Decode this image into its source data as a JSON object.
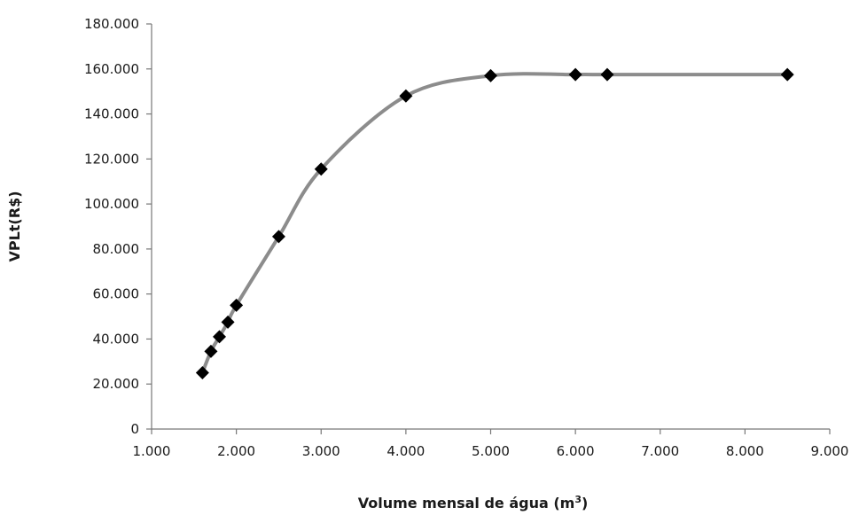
{
  "chart_data": {
    "type": "scatter",
    "xlabel": "Volume mensal de água (m³)",
    "xlabel_main": "Volume mensal de água (m",
    "xlabel_sup": "3",
    "xlabel_tail": ")",
    "ylabel": "VPLt(R$)",
    "xlim": [
      1000,
      9000
    ],
    "ylim": [
      0,
      180000
    ],
    "x_ticks": [
      1000,
      2000,
      3000,
      4000,
      5000,
      6000,
      7000,
      8000,
      9000
    ],
    "x_tick_labels": [
      "1.000",
      "2.000",
      "3.000",
      "4.000",
      "5.000",
      "6.000",
      "7.000",
      "8.000",
      "9.000"
    ],
    "y_ticks": [
      0,
      20000,
      40000,
      60000,
      80000,
      100000,
      120000,
      140000,
      160000,
      180000
    ],
    "y_tick_labels": [
      "0",
      "20.000",
      "40.000",
      "60.000",
      "80.000",
      "100.000",
      "120.000",
      "140.000",
      "160.000",
      "180.000"
    ],
    "grid": false,
    "series": [
      {
        "x": [
          1600,
          1700,
          1800,
          1900,
          2000,
          2500,
          3000,
          4000,
          5000,
          6000,
          6375,
          8500
        ],
        "y": [
          25000,
          34500,
          41000,
          47500,
          55000,
          85500,
          115500,
          148000,
          157000,
          157500,
          157500,
          157500
        ],
        "marker": "diamond",
        "marker_color": "#000000",
        "line_color": "#8c8c8c",
        "smooth": true
      }
    ]
  }
}
